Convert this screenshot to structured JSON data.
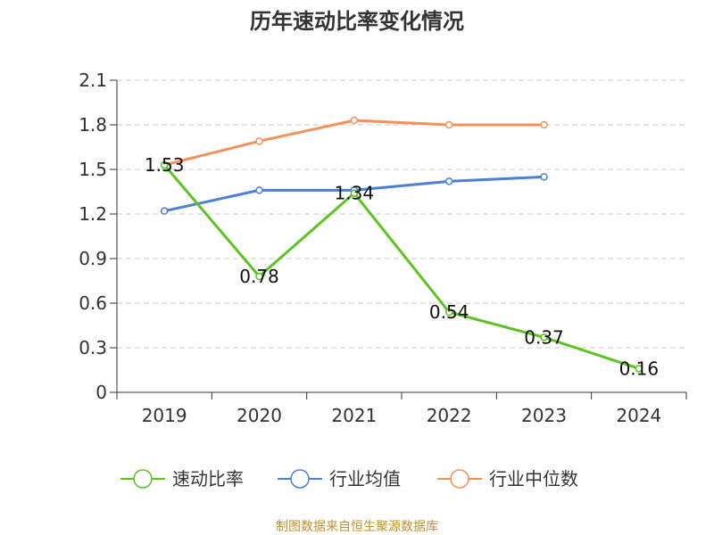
{
  "chart_data": {
    "type": "line",
    "title": "历年速动比率变化情况",
    "categories": [
      "2019",
      "2020",
      "2021",
      "2022",
      "2023",
      "2024"
    ],
    "y_ticks": [
      "0",
      "0.3",
      "0.6",
      "0.9",
      "1.2",
      "1.5",
      "1.8",
      "2.1"
    ],
    "ylim": [
      0,
      2.1
    ],
    "grid": true,
    "legend_position": "bottom",
    "series": [
      {
        "name": "速动比率",
        "color": "#5cc320",
        "values": [
          1.53,
          0.78,
          1.34,
          0.54,
          0.37,
          0.16
        ],
        "labels": [
          "1.53",
          "0.78",
          "1.34",
          "0.54",
          "0.37",
          "0.16"
        ]
      },
      {
        "name": "行业均值",
        "color": "#4b7fd8",
        "values": [
          1.22,
          1.36,
          1.36,
          1.42,
          1.45,
          null
        ]
      },
      {
        "name": "行业中位数",
        "color": "#f4905a",
        "values": [
          1.53,
          1.69,
          1.83,
          1.8,
          1.8,
          null
        ]
      }
    ]
  },
  "source": "制图数据来自恒生聚源数据库"
}
